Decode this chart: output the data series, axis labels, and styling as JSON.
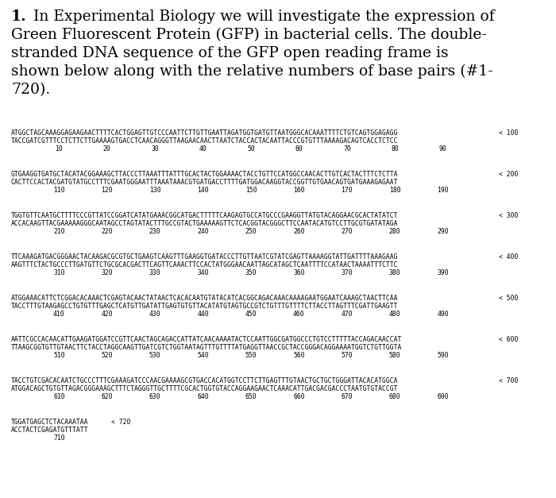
{
  "blocks": [
    {
      "seq1": "ATGGCTAGCAAAGGAGAAGAACTTTTCACTGGAGTTGTCCCAATTCTTGTTGAATTAGATGGTGATGTTAATGGGCACAAATTTTCTGTCAGTGGAGAGG",
      "seq2": "TACCGATCGTTTCCTCTTCTTGAAAAGTGACCTCAACAGGGTTAAGAACAACTTAATCTACCACTACAATTACCCGTGTTTAAAAGACAGTCACCTCTCC",
      "label": "< 100",
      "ticks": [
        "10",
        "20",
        "30",
        "40",
        "50",
        "60",
        "70",
        "80",
        "90"
      ]
    },
    {
      "seq1": "GTGAAGGTGATGCTACATACGGAAAGCTTACCCTTAAATTTATTTGCACTACTGGAAAACTACCTGTTCCATGGCCAACACTTGTCACTACTTTCTCTTA",
      "seq2": "CACTTCCACTACGATGTATGCCTTTCGAATGGGAATTTAAATAAACGTGATGACCTTTTGATGGACAAGGTACCGGTTGTGAACAGTGATGAAAGAGAAT",
      "label": "< 200",
      "ticks": [
        "110",
        "120",
        "130",
        "140",
        "150",
        "160",
        "170",
        "180",
        "190"
      ]
    },
    {
      "seq1": "TGGTGTTCAATGCTTTTCCCGTTATCCGGATCATATGAAACGGCATGACTTTTTCAAGAGTGCCATGCCCGAAGGTTATGTACAGGAACGCACTATATCT",
      "seq2": "ACCACAAGTTACGAAAAAGGGCAATAGCCTAGTATACTTTGCCGTACTGAAAAAGTTCTCACGGTACGGGCTTCCAATACATGTCCTTGCGTGATATAGA",
      "label": "< 300",
      "ticks": [
        "210",
        "220",
        "230",
        "240",
        "250",
        "260",
        "270",
        "280",
        "290"
      ]
    },
    {
      "seq1": "TTCAAAGATGACGGGAACTACAAGACGCGTGCTGAAGTCAAGTTTGAAGGTGATACCCTTGTTAATCGTATCGAGTTAAAAGGTATTGATTTTAAAGAAG",
      "seq2": "AAGTTTCTACTGCCCTTGATGTTCTGCGCACGACTTCAGTTCAAACTTCCACTATGGGAACAATTAGCATAGCTCAATTTTCCATAACTAAAATTTCTTC",
      "label": "< 400",
      "ticks": [
        "310",
        "320",
        "330",
        "340",
        "350",
        "360",
        "370",
        "380",
        "390"
      ]
    },
    {
      "seq1": "ATGGAAACATTCTCGGACACAAACTCGAGTACAACTATAACTCACACAATGTATACATCACGGCAGACAAACAAAAGAATGGAATCAAAGCTAACTTCAA",
      "seq2": "TACCTTTGTAAGAGCCTGTGTTTGAGCTCATGTTGATATTGAGTGTGTTACATATGTAGTGCCGTCTGTTTGTTTTCTTACCTTAGTTTCGATTGAAGTT",
      "label": "< 500",
      "ticks": [
        "410",
        "420",
        "430",
        "440",
        "450",
        "460",
        "470",
        "480",
        "490"
      ]
    },
    {
      "seq1": "AATTCGCCACAACATTGAAGATGGATCCGTTCAACTAGCAGACCATTATCAACAAAATACTCCAATTGGCGATGGCCCTGTCCTTTTTACCAGACAACCAT",
      "seq2": "TTAAGCGGTGTTGTAACTTCTACCTAGGCAAGTTGATCGTCTGGTAATAGTTTGTTTTATGAGGTTAACCGCTACCGGGACAGGAAAATGGTCTGTTGGTA",
      "label": "< 600",
      "ticks": [
        "510",
        "520",
        "530",
        "540",
        "550",
        "560",
        "570",
        "580",
        "590"
      ]
    },
    {
      "seq1": "TACCTGTCGACACAATCTGCCCTTTCGAAAGATCCCAACGAAAAGCGTGACCACATGGTCCTTCTTGAGTTTGTAACTGCTGCTGGGATTACACATGGCA",
      "seq2": "ATGGACAGCTGTGTTAGACGGGAAAGCTTTCTAGGGTTGCTTTTCGCACTGGTGTACCAGGAAGAACTCAAACATTGACGACGACCCTAATGTGTACCGT",
      "label": "< 700",
      "ticks": [
        "610",
        "620",
        "630",
        "640",
        "650",
        "660",
        "670",
        "680",
        "690"
      ]
    },
    {
      "seq1": "TGGATGAGCTCTACAAATAA",
      "seq2": "ACCTACTCGAGATGTTTATT",
      "label": "< 720",
      "ticks": [
        "710"
      ]
    }
  ],
  "bg_color": "#ffffff",
  "text_color": "#000000",
  "para_fontsize": 13.5,
  "seq_fontsize": 5.8,
  "tick_fontsize": 5.8,
  "fig_width": 7.0,
  "fig_height": 6.27,
  "dpi": 100
}
